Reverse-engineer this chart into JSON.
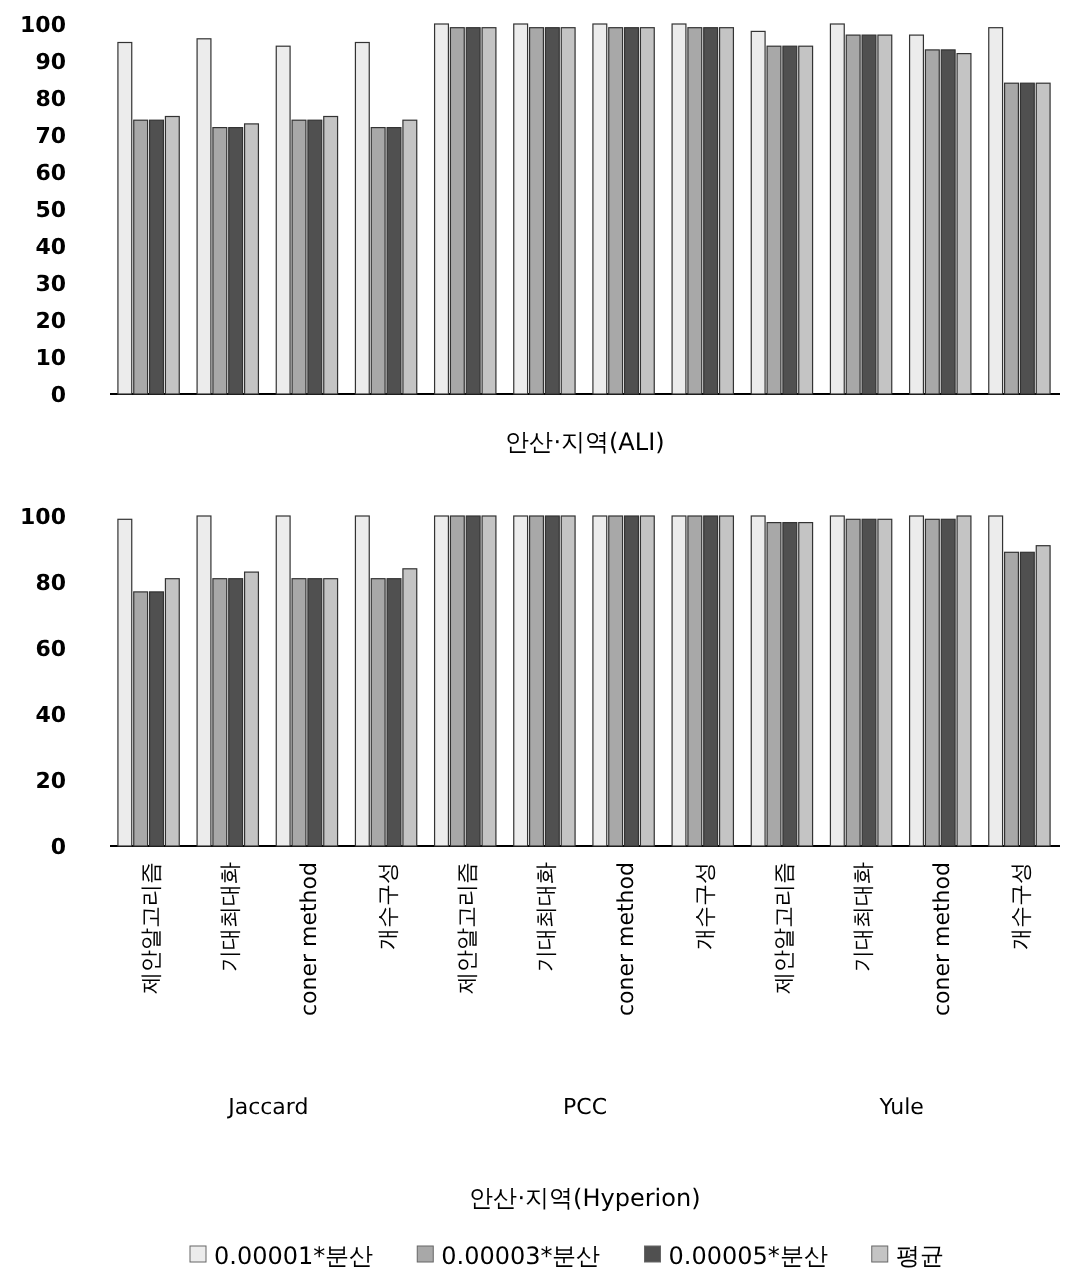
{
  "chart_data": [
    {
      "type": "bar",
      "xlabel": "안산·지역(ALI)",
      "categories": [
        null,
        null,
        null,
        null,
        null,
        null,
        null,
        null,
        null,
        null,
        null,
        null
      ],
      "series": [
        {
          "color": "#ececec",
          "values": [
            95,
            96,
            94,
            95,
            100,
            100,
            100,
            100,
            98,
            100,
            97,
            99
          ]
        },
        {
          "color": "#a8a8a8",
          "values": [
            74,
            72,
            74,
            72,
            99,
            99,
            99,
            99,
            94,
            97,
            93,
            84
          ]
        },
        {
          "color": "#505050",
          "values": [
            74,
            72,
            74,
            72,
            99,
            99,
            99,
            99,
            94,
            97,
            93,
            84
          ]
        },
        {
          "color": "#c4c4c4",
          "values": [
            75,
            73,
            75,
            74,
            99,
            99,
            99,
            99,
            94,
            97,
            92,
            84
          ]
        }
      ],
      "ylim": [
        0,
        100
      ],
      "yticks": [
        0,
        10,
        20,
        30,
        40,
        50,
        60,
        70,
        80,
        90,
        100
      ],
      "tick_labels": "y",
      "legend": false
    },
    {
      "type": "bar",
      "xlabel": "안산·지역(Hyperion)",
      "categories": [
        "제안알고리즘",
        "기대최대화",
        "coner method",
        "개수구성",
        "제안알고리즘",
        "기대최대화",
        "coner method",
        "개수구성",
        "제안알고리즘",
        "기대최대화",
        "coner method",
        "개수구성"
      ],
      "annotations": [
        "Jaccard",
        "PCC",
        "Yule"
      ],
      "series": [
        {
          "name": "0.00001*분산",
          "color": "#ececec",
          "values": [
            99,
            100,
            100,
            100,
            100,
            100,
            100,
            100,
            100,
            100,
            100,
            100
          ]
        },
        {
          "name": "0.00003*분산",
          "color": "#a8a8a8",
          "values": [
            77,
            81,
            81,
            81,
            100,
            100,
            100,
            100,
            98,
            99,
            99,
            89
          ]
        },
        {
          "name": "0.00005*분산",
          "color": "#505050",
          "values": [
            77,
            81,
            81,
            81,
            100,
            100,
            100,
            100,
            98,
            99,
            99,
            89
          ]
        },
        {
          "name": "평균",
          "color": "#c4c4c4",
          "values": [
            81,
            83,
            81,
            84,
            100,
            100,
            100,
            100,
            98,
            99,
            100,
            91
          ]
        }
      ],
      "ylim": [
        0,
        100
      ],
      "yticks": [
        0,
        20,
        40,
        60,
        80,
        100
      ],
      "legend": "bottom"
    }
  ]
}
